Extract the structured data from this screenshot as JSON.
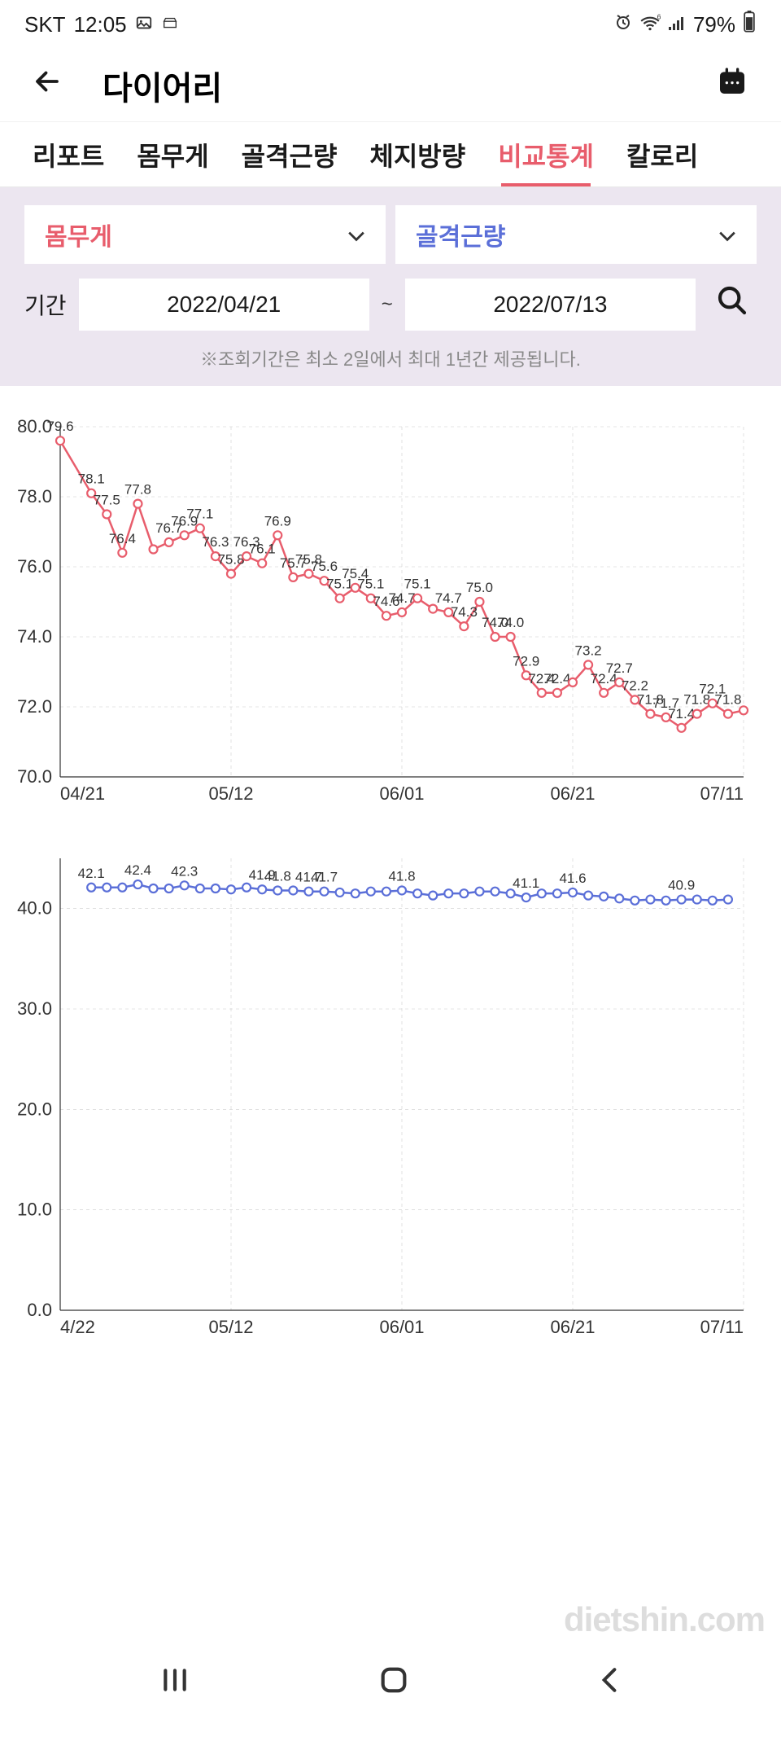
{
  "status_bar": {
    "carrier": "SKT",
    "time": "12:05",
    "battery": "79%"
  },
  "header": {
    "title": "다이어리"
  },
  "tabs": [
    {
      "label": "리포트",
      "active": false
    },
    {
      "label": "몸무게",
      "active": false
    },
    {
      "label": "골격근량",
      "active": false
    },
    {
      "label": "체지방량",
      "active": false
    },
    {
      "label": "비교통계",
      "active": true
    },
    {
      "label": "칼로리",
      "active": false
    }
  ],
  "filters": {
    "metric1": "몸무게",
    "metric2": "골격근량",
    "date_label": "기간",
    "date_from": "2022/04/21",
    "date_to": "2022/07/13",
    "note": "※조회기간은 최소 2일에서 최대 1년간 제공됩니다."
  },
  "chart1": {
    "type": "line",
    "line_color": "#e85d6c",
    "marker_fill": "#ffffff",
    "marker_stroke": "#e85d6c",
    "marker_radius": 5,
    "line_width": 2.5,
    "background_color": "#ffffff",
    "grid_color": "#cccccc",
    "ylim": [
      70,
      80
    ],
    "ytick_step": 2,
    "yticks": [
      70.0,
      72.0,
      74.0,
      76.0,
      78.0,
      80.0
    ],
    "xticks": [
      "04/21",
      "05/12",
      "06/01",
      "06/21",
      "07/11"
    ],
    "data": [
      {
        "x": 0,
        "y": 79.6,
        "label": "79.6"
      },
      {
        "x": 2,
        "y": 78.1,
        "label": "78.1"
      },
      {
        "x": 3,
        "y": 77.5,
        "label": "77.5"
      },
      {
        "x": 4,
        "y": 76.4,
        "label": "76.4"
      },
      {
        "x": 5,
        "y": 77.8,
        "label": "77.8"
      },
      {
        "x": 6,
        "y": 76.5,
        "label": ""
      },
      {
        "x": 7,
        "y": 76.7,
        "label": "76.7"
      },
      {
        "x": 8,
        "y": 76.9,
        "label": "76.9"
      },
      {
        "x": 9,
        "y": 77.1,
        "label": "77.1"
      },
      {
        "x": 10,
        "y": 76.3,
        "label": "76.3"
      },
      {
        "x": 11,
        "y": 75.8,
        "label": "75.8"
      },
      {
        "x": 12,
        "y": 76.3,
        "label": "76.3"
      },
      {
        "x": 13,
        "y": 76.1,
        "label": "76.1"
      },
      {
        "x": 14,
        "y": 76.9,
        "label": "76.9"
      },
      {
        "x": 15,
        "y": 75.7,
        "label": "75.7"
      },
      {
        "x": 16,
        "y": 75.8,
        "label": "75.8"
      },
      {
        "x": 17,
        "y": 75.6,
        "label": "75.6"
      },
      {
        "x": 18,
        "y": 75.1,
        "label": "75.1"
      },
      {
        "x": 19,
        "y": 75.4,
        "label": "75.4"
      },
      {
        "x": 20,
        "y": 75.1,
        "label": "75.1"
      },
      {
        "x": 21,
        "y": 74.6,
        "label": "74.6"
      },
      {
        "x": 22,
        "y": 74.7,
        "label": "74.7"
      },
      {
        "x": 23,
        "y": 75.1,
        "label": "75.1"
      },
      {
        "x": 24,
        "y": 74.8,
        "label": ""
      },
      {
        "x": 25,
        "y": 74.7,
        "label": "74.7"
      },
      {
        "x": 26,
        "y": 74.3,
        "label": "74.3"
      },
      {
        "x": 27,
        "y": 75.0,
        "label": "75.0"
      },
      {
        "x": 28,
        "y": 74.0,
        "label": "74.0"
      },
      {
        "x": 29,
        "y": 74.0,
        "label": "74.0"
      },
      {
        "x": 30,
        "y": 72.9,
        "label": "72.9"
      },
      {
        "x": 31,
        "y": 72.4,
        "label": "72.4"
      },
      {
        "x": 32,
        "y": 72.4,
        "label": "72.4"
      },
      {
        "x": 33,
        "y": 72.7,
        "label": ""
      },
      {
        "x": 34,
        "y": 73.2,
        "label": "73.2"
      },
      {
        "x": 35,
        "y": 72.4,
        "label": "72.4"
      },
      {
        "x": 36,
        "y": 72.7,
        "label": "72.7"
      },
      {
        "x": 37,
        "y": 72.2,
        "label": "72.2"
      },
      {
        "x": 38,
        "y": 71.8,
        "label": "71.8"
      },
      {
        "x": 39,
        "y": 71.7,
        "label": "71.7"
      },
      {
        "x": 40,
        "y": 71.4,
        "label": "71.4"
      },
      {
        "x": 41,
        "y": 71.8,
        "label": "71.8"
      },
      {
        "x": 42,
        "y": 72.1,
        "label": "72.1"
      },
      {
        "x": 43,
        "y": 71.8,
        "label": "71.8"
      },
      {
        "x": 44,
        "y": 71.9,
        "label": ""
      }
    ]
  },
  "chart2": {
    "type": "line",
    "line_color": "#5b6fd8",
    "marker_fill": "#ffffff",
    "marker_stroke": "#5b6fd8",
    "marker_radius": 5,
    "line_width": 2.5,
    "background_color": "#ffffff",
    "grid_color": "#cccccc",
    "ylim": [
      0,
      45
    ],
    "yticks": [
      0.0,
      10.0,
      20.0,
      30.0,
      40.0
    ],
    "xticks": [
      "4/22",
      "05/12",
      "06/01",
      "06/21",
      "07/11"
    ],
    "data": [
      {
        "x": 2,
        "y": 42.1,
        "label": "42.1"
      },
      {
        "x": 3,
        "y": 42.1,
        "label": ""
      },
      {
        "x": 4,
        "y": 42.1,
        "label": ""
      },
      {
        "x": 5,
        "y": 42.4,
        "label": "42.4"
      },
      {
        "x": 6,
        "y": 42.0,
        "label": ""
      },
      {
        "x": 7,
        "y": 42.0,
        "label": ""
      },
      {
        "x": 8,
        "y": 42.3,
        "label": "42.3"
      },
      {
        "x": 9,
        "y": 42.0,
        "label": ""
      },
      {
        "x": 10,
        "y": 42.0,
        "label": ""
      },
      {
        "x": 11,
        "y": 41.9,
        "label": ""
      },
      {
        "x": 12,
        "y": 42.1,
        "label": ""
      },
      {
        "x": 13,
        "y": 41.9,
        "label": "41.9"
      },
      {
        "x": 14,
        "y": 41.8,
        "label": "41.8"
      },
      {
        "x": 15,
        "y": 41.8,
        "label": ""
      },
      {
        "x": 16,
        "y": 41.7,
        "label": "41.7"
      },
      {
        "x": 17,
        "y": 41.7,
        "label": "41.7"
      },
      {
        "x": 18,
        "y": 41.6,
        "label": ""
      },
      {
        "x": 19,
        "y": 41.5,
        "label": ""
      },
      {
        "x": 20,
        "y": 41.7,
        "label": ""
      },
      {
        "x": 21,
        "y": 41.7,
        "label": ""
      },
      {
        "x": 22,
        "y": 41.8,
        "label": "41.8"
      },
      {
        "x": 23,
        "y": 41.5,
        "label": ""
      },
      {
        "x": 24,
        "y": 41.3,
        "label": ""
      },
      {
        "x": 25,
        "y": 41.5,
        "label": ""
      },
      {
        "x": 26,
        "y": 41.5,
        "label": ""
      },
      {
        "x": 27,
        "y": 41.7,
        "label": ""
      },
      {
        "x": 28,
        "y": 41.7,
        "label": ""
      },
      {
        "x": 29,
        "y": 41.5,
        "label": ""
      },
      {
        "x": 30,
        "y": 41.1,
        "label": "41.1"
      },
      {
        "x": 31,
        "y": 41.5,
        "label": ""
      },
      {
        "x": 32,
        "y": 41.5,
        "label": ""
      },
      {
        "x": 33,
        "y": 41.6,
        "label": "41.6"
      },
      {
        "x": 34,
        "y": 41.3,
        "label": ""
      },
      {
        "x": 35,
        "y": 41.2,
        "label": ""
      },
      {
        "x": 36,
        "y": 41.0,
        "label": ""
      },
      {
        "x": 37,
        "y": 40.8,
        "label": ""
      },
      {
        "x": 38,
        "y": 40.9,
        "label": ""
      },
      {
        "x": 39,
        "y": 40.8,
        "label": ""
      },
      {
        "x": 40,
        "y": 40.9,
        "label": "40.9"
      },
      {
        "x": 41,
        "y": 40.9,
        "label": ""
      },
      {
        "x": 42,
        "y": 40.8,
        "label": ""
      },
      {
        "x": 43,
        "y": 40.9,
        "label": ""
      }
    ]
  },
  "watermark": "dietshin.com"
}
